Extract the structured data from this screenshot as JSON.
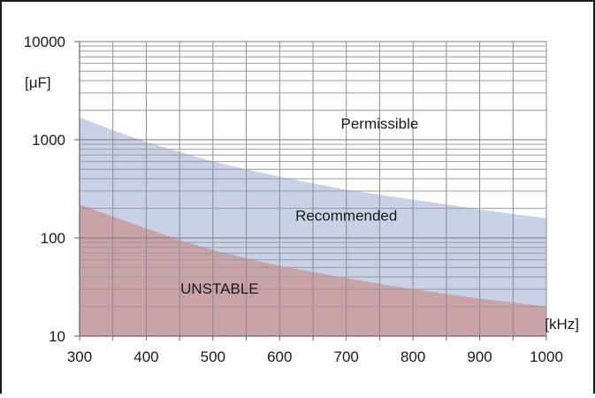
{
  "chart_data": {
    "type": "area",
    "x_scale": "linear",
    "y_scale": "log",
    "xlim": [
      300,
      1000
    ],
    "ylim": [
      10,
      10000
    ],
    "grid": true,
    "x_ticks": [
      300,
      350,
      400,
      450,
      500,
      550,
      600,
      650,
      700,
      750,
      800,
      850,
      900,
      950,
      1000
    ],
    "x_tick_labels": [
      "300",
      "400",
      "500",
      "600",
      "700",
      "800",
      "900",
      "1000"
    ],
    "x_tick_label_values": [
      300,
      400,
      500,
      600,
      700,
      800,
      900,
      1000
    ],
    "y_tick_labels": [
      "10",
      "100",
      "1000",
      "10000"
    ],
    "y_tick_label_values": [
      10,
      100,
      1000,
      10000
    ],
    "x_unit": "[kHz]",
    "y_unit": "[μF]",
    "colors": {
      "unstable": "#c9a3a8",
      "recommended": "#c9d1e6",
      "permissible": "#ffffff",
      "grid": "#8a8a8a"
    },
    "series": [
      {
        "name": "Recommended",
        "x": [
          300,
          350,
          400,
          450,
          500,
          550,
          600,
          650,
          700,
          750,
          800,
          850,
          900,
          950,
          1000
        ],
        "y": [
          1700,
          1250,
          950,
          750,
          600,
          500,
          420,
          360,
          310,
          275,
          245,
          220,
          195,
          175,
          158
        ]
      },
      {
        "name": "UNSTABLE",
        "x": [
          300,
          350,
          400,
          450,
          500,
          550,
          600,
          650,
          700,
          750,
          800,
          850,
          900,
          950,
          1000
        ],
        "y": [
          220,
          165,
          125,
          95,
          75,
          62,
          52,
          45,
          39,
          34,
          30,
          27,
          24,
          22,
          20
        ]
      }
    ],
    "region_labels": [
      {
        "text": "Permissible",
        "x": 750,
        "y": 1300
      },
      {
        "text": "Recommended",
        "x": 700,
        "y": 150
      },
      {
        "text": "UNSTABLE",
        "x": 510,
        "y": 27
      }
    ]
  }
}
